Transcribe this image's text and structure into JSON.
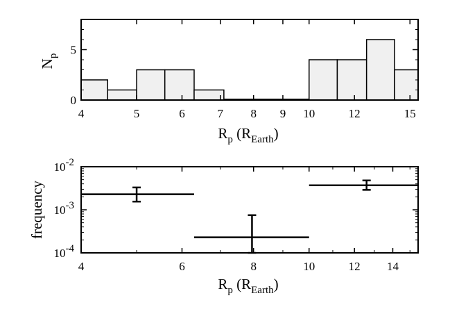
{
  "chart_data": [
    {
      "type": "bar",
      "panel": "top",
      "xscale": "log",
      "xlim": [
        4,
        15.5
      ],
      "ylim": [
        0,
        8
      ],
      "xticks": [
        4,
        5,
        6,
        7,
        8,
        9,
        10,
        12,
        15
      ],
      "xtick_labels": [
        "4",
        "5",
        "6",
        "7",
        "8",
        "9",
        "10",
        "12",
        "15"
      ],
      "yticks": [
        0,
        5
      ],
      "ytick_labels": [
        "0",
        "5"
      ],
      "xlabel": {
        "main": "R",
        "sub": "p",
        "paren_open": " (R",
        "paren_sub": "Earth",
        "paren_close": ")"
      },
      "ylabel": {
        "main": "N",
        "sub": "p"
      },
      "bins": [
        {
          "x0": 4.0,
          "x1": 4.45,
          "value": 2
        },
        {
          "x0": 4.45,
          "x1": 5.0,
          "value": 1
        },
        {
          "x0": 5.0,
          "x1": 5.6,
          "value": 3
        },
        {
          "x0": 5.6,
          "x1": 6.3,
          "value": 3
        },
        {
          "x0": 6.3,
          "x1": 7.1,
          "value": 1
        },
        {
          "x0": 7.1,
          "x1": 8.0,
          "value": 0
        },
        {
          "x0": 8.0,
          "x1": 8.9,
          "value": 0
        },
        {
          "x0": 8.9,
          "x1": 10.0,
          "value": 0
        },
        {
          "x0": 10.0,
          "x1": 11.2,
          "value": 4
        },
        {
          "x0": 11.2,
          "x1": 12.6,
          "value": 4
        },
        {
          "x0": 12.6,
          "x1": 14.1,
          "value": 6
        },
        {
          "x0": 14.1,
          "x1": 15.5,
          "value": 3
        }
      ],
      "bar_color": "#f0f0f0"
    },
    {
      "type": "scatter",
      "panel": "bottom",
      "xscale": "log",
      "yscale": "log",
      "xlim": [
        4,
        15.5
      ],
      "ylim": [
        0.0001,
        0.01
      ],
      "xticks": [
        4,
        6,
        8,
        10,
        12,
        14
      ],
      "xtick_labels": [
        "4",
        "6",
        "8",
        "10",
        "12",
        "14"
      ],
      "yticks": [
        {
          "value": 0.01,
          "base": "10",
          "exp": "-2"
        },
        {
          "value": 0.001,
          "base": "10",
          "exp": "-3"
        },
        {
          "value": 0.0001,
          "base": "10",
          "exp": "-4"
        }
      ],
      "xlabel": {
        "main": "R",
        "sub": "p",
        "paren_open": " (R",
        "paren_sub": "Earth",
        "paren_close": ")"
      },
      "ylabel": "frequency",
      "points": [
        {
          "x0": 4.0,
          "x1": 6.3,
          "x": 5.0,
          "y": 0.0023,
          "ylo": 0.00155,
          "yhi": 0.0033
        },
        {
          "x0": 6.3,
          "x1": 10.0,
          "x": 7.95,
          "y": 0.00023,
          "ylo": 0.0001,
          "yhi": 0.00075
        },
        {
          "x0": 10.0,
          "x1": 15.5,
          "x": 12.6,
          "y": 0.0037,
          "ylo": 0.0029,
          "yhi": 0.0048
        }
      ]
    }
  ]
}
